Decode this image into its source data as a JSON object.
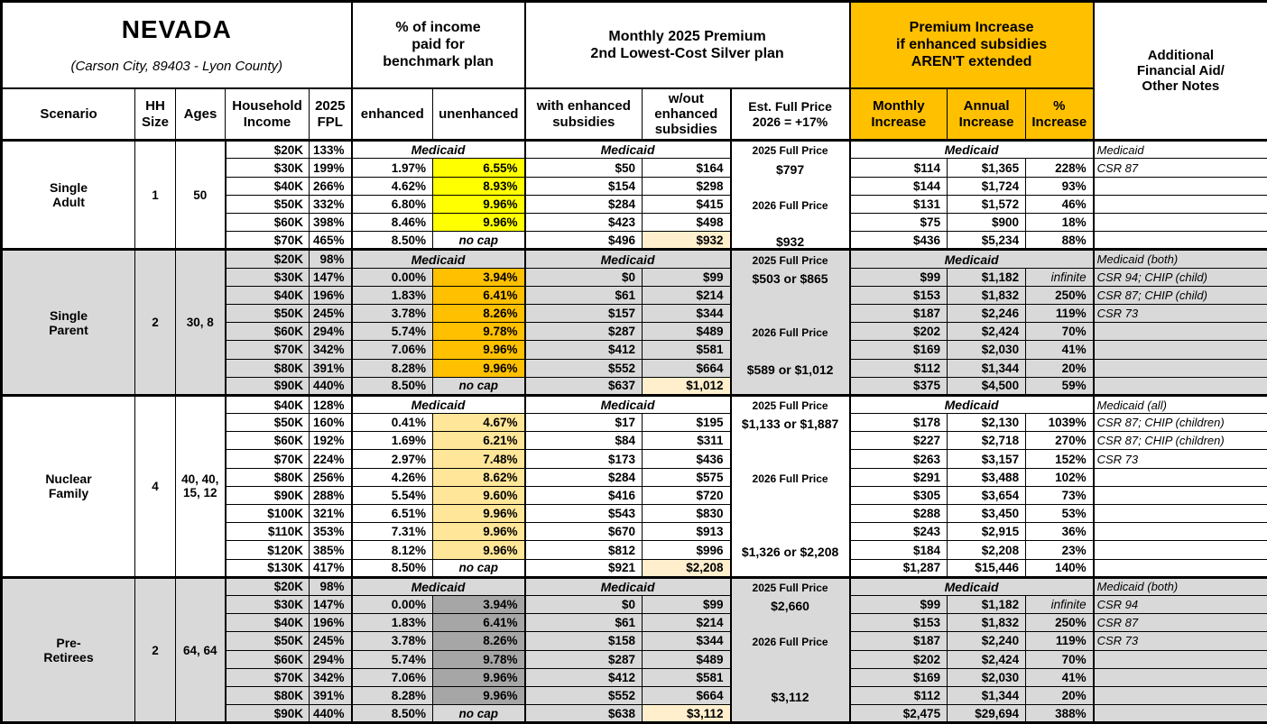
{
  "title": {
    "state": "NEVADA",
    "location": "(Carson City, 89403 - Lyon County)"
  },
  "column_groups": {
    "income_pct": "% of income\npaid for\nbenchmark plan",
    "premium": "Monthly 2025 Premium\n2nd Lowest-Cost Silver plan",
    "increase": "Premium Increase\nif enhanced subsidies\nAREN'T extended",
    "notes": "Additional\nFinancial Aid/\nOther Notes"
  },
  "column_headers": {
    "scenario": "Scenario",
    "hh_size": "HH\nSize",
    "ages": "Ages",
    "income": "Household\nIncome",
    "fpl": "2025\nFPL",
    "enhanced": "enhanced",
    "unenhanced": "unenhanced",
    "with_sub": "with enhanced\nsubsidies",
    "without_sub": "w/out\nenhanced\nsubsidies",
    "full_price": "Est. Full Price\n2026 = +17%",
    "monthly": "Monthly\nIncrease",
    "annual": "Annual\nIncrease",
    "pct": "%\nIncrease"
  },
  "labels": {
    "medicaid": "Medicaid",
    "no_cap": "no cap",
    "price_2025": "2025 Full Price",
    "price_2026": "2026 Full Price"
  },
  "colors": {
    "accent_orange": "#FFC000",
    "yellow": "#FFFF00",
    "peach": "#FFE699",
    "gray_cell": "#A6A6A6",
    "row_shade": "#D9D9D9",
    "highlight": "#FFEFCD"
  },
  "scenarios": [
    {
      "name": "Single\nAdult",
      "hh_size": "1",
      "ages": "50",
      "shaded": false,
      "unenhanced_color": "#FFFF00",
      "full_price_lines": [
        {
          "row": 0,
          "text": "2025 Full Price",
          "label": true
        },
        {
          "row": 1,
          "text": "$797"
        },
        {
          "row": 3,
          "text": "2026 Full Price",
          "label": true
        },
        {
          "row": 5,
          "text": "$932"
        }
      ],
      "rows": [
        {
          "income": "$20K",
          "fpl": "133%",
          "medicaid": true,
          "notes": "Medicaid"
        },
        {
          "income": "$30K",
          "fpl": "199%",
          "enhanced": "1.97%",
          "unenhanced": "6.55%",
          "with_sub": "$50",
          "without_sub": "$164",
          "monthly": "$114",
          "annual": "$1,365",
          "pct_increase": "228%",
          "notes": "CSR 87"
        },
        {
          "income": "$40K",
          "fpl": "266%",
          "enhanced": "4.62%",
          "unenhanced": "8.93%",
          "with_sub": "$154",
          "without_sub": "$298",
          "monthly": "$144",
          "annual": "$1,724",
          "pct_increase": "93%",
          "notes": ""
        },
        {
          "income": "$50K",
          "fpl": "332%",
          "enhanced": "6.80%",
          "unenhanced": "9.96%",
          "with_sub": "$284",
          "without_sub": "$415",
          "monthly": "$131",
          "annual": "$1,572",
          "pct_increase": "46%",
          "notes": ""
        },
        {
          "income": "$60K",
          "fpl": "398%",
          "enhanced": "8.46%",
          "unenhanced": "9.96%",
          "with_sub": "$423",
          "without_sub": "$498",
          "monthly": "$75",
          "annual": "$900",
          "pct_increase": "18%",
          "notes": ""
        },
        {
          "income": "$70K",
          "fpl": "465%",
          "enhanced": "8.50%",
          "unenhanced": "no cap",
          "no_cap": true,
          "with_sub": "$496",
          "without_sub": "$932",
          "wo_highlight": true,
          "monthly": "$436",
          "annual": "$5,234",
          "pct_increase": "88%",
          "notes": ""
        }
      ]
    },
    {
      "name": "Single\nParent",
      "hh_size": "2",
      "ages": "30, 8",
      "shaded": true,
      "unenhanced_color": "#FFC000",
      "full_price_lines": [
        {
          "row": 0,
          "text": "2025 Full Price",
          "label": true
        },
        {
          "row": 1,
          "text": "$503 or $865"
        },
        {
          "row": 4,
          "text": "2026 Full Price",
          "label": true
        },
        {
          "row": 6,
          "text": "$589 or $1,012"
        }
      ],
      "rows": [
        {
          "income": "$20K",
          "fpl": "98%",
          "medicaid": true,
          "notes": "Medicaid (both)"
        },
        {
          "income": "$30K",
          "fpl": "147%",
          "enhanced": "0.00%",
          "unenhanced": "3.94%",
          "with_sub": "$0",
          "without_sub": "$99",
          "monthly": "$99",
          "annual": "$1,182",
          "pct_increase": "infinite",
          "pct_italic": true,
          "notes": "CSR 94; CHIP (child)"
        },
        {
          "income": "$40K",
          "fpl": "196%",
          "enhanced": "1.83%",
          "unenhanced": "6.41%",
          "with_sub": "$61",
          "without_sub": "$214",
          "monthly": "$153",
          "annual": "$1,832",
          "pct_increase": "250%",
          "notes": "CSR 87; CHIP (child)"
        },
        {
          "income": "$50K",
          "fpl": "245%",
          "enhanced": "3.78%",
          "unenhanced": "8.26%",
          "with_sub": "$157",
          "without_sub": "$344",
          "monthly": "$187",
          "annual": "$2,246",
          "pct_increase": "119%",
          "notes": "CSR 73"
        },
        {
          "income": "$60K",
          "fpl": "294%",
          "enhanced": "5.74%",
          "unenhanced": "9.78%",
          "with_sub": "$287",
          "without_sub": "$489",
          "monthly": "$202",
          "annual": "$2,424",
          "pct_increase": "70%",
          "notes": ""
        },
        {
          "income": "$70K",
          "fpl": "342%",
          "enhanced": "7.06%",
          "unenhanced": "9.96%",
          "with_sub": "$412",
          "without_sub": "$581",
          "monthly": "$169",
          "annual": "$2,030",
          "pct_increase": "41%",
          "notes": ""
        },
        {
          "income": "$80K",
          "fpl": "391%",
          "enhanced": "8.28%",
          "unenhanced": "9.96%",
          "with_sub": "$552",
          "without_sub": "$664",
          "monthly": "$112",
          "annual": "$1,344",
          "pct_increase": "20%",
          "notes": ""
        },
        {
          "income": "$90K",
          "fpl": "440%",
          "enhanced": "8.50%",
          "unenhanced": "no cap",
          "no_cap": true,
          "with_sub": "$637",
          "without_sub": "$1,012",
          "wo_highlight": true,
          "monthly": "$375",
          "annual": "$4,500",
          "pct_increase": "59%",
          "notes": ""
        }
      ]
    },
    {
      "name": "Nuclear\nFamily",
      "hh_size": "4",
      "ages": "40, 40,\n15, 12",
      "shaded": false,
      "unenhanced_color": "#FFE699",
      "full_price_lines": [
        {
          "row": 0,
          "text": "2025 Full Price",
          "label": true
        },
        {
          "row": 1,
          "text": "$1,133 or $1,887"
        },
        {
          "row": 4,
          "text": "2026 Full Price",
          "label": true
        },
        {
          "row": 8,
          "text": "$1,326 or $2,208"
        }
      ],
      "rows": [
        {
          "income": "$40K",
          "fpl": "128%",
          "medicaid": true,
          "notes": "Medicaid (all)"
        },
        {
          "income": "$50K",
          "fpl": "160%",
          "enhanced": "0.41%",
          "unenhanced": "4.67%",
          "with_sub": "$17",
          "without_sub": "$195",
          "monthly": "$178",
          "annual": "$2,130",
          "pct_increase": "1039%",
          "notes": "CSR 87; CHIP (children)"
        },
        {
          "income": "$60K",
          "fpl": "192%",
          "enhanced": "1.69%",
          "unenhanced": "6.21%",
          "with_sub": "$84",
          "without_sub": "$311",
          "monthly": "$227",
          "annual": "$2,718",
          "pct_increase": "270%",
          "notes": "CSR 87; CHIP (children)"
        },
        {
          "income": "$70K",
          "fpl": "224%",
          "enhanced": "2.97%",
          "unenhanced": "7.48%",
          "with_sub": "$173",
          "without_sub": "$436",
          "monthly": "$263",
          "annual": "$3,157",
          "pct_increase": "152%",
          "notes": "CSR 73"
        },
        {
          "income": "$80K",
          "fpl": "256%",
          "enhanced": "4.26%",
          "unenhanced": "8.62%",
          "with_sub": "$284",
          "without_sub": "$575",
          "monthly": "$291",
          "annual": "$3,488",
          "pct_increase": "102%",
          "notes": ""
        },
        {
          "income": "$90K",
          "fpl": "288%",
          "enhanced": "5.54%",
          "unenhanced": "9.60%",
          "with_sub": "$416",
          "without_sub": "$720",
          "monthly": "$305",
          "annual": "$3,654",
          "pct_increase": "73%",
          "notes": ""
        },
        {
          "income": "$100K",
          "fpl": "321%",
          "enhanced": "6.51%",
          "unenhanced": "9.96%",
          "with_sub": "$543",
          "without_sub": "$830",
          "monthly": "$288",
          "annual": "$3,450",
          "pct_increase": "53%",
          "notes": ""
        },
        {
          "income": "$110K",
          "fpl": "353%",
          "enhanced": "7.31%",
          "unenhanced": "9.96%",
          "with_sub": "$670",
          "without_sub": "$913",
          "monthly": "$243",
          "annual": "$2,915",
          "pct_increase": "36%",
          "notes": ""
        },
        {
          "income": "$120K",
          "fpl": "385%",
          "enhanced": "8.12%",
          "unenhanced": "9.96%",
          "with_sub": "$812",
          "without_sub": "$996",
          "monthly": "$184",
          "annual": "$2,208",
          "pct_increase": "23%",
          "notes": ""
        },
        {
          "income": "$130K",
          "fpl": "417%",
          "enhanced": "8.50%",
          "unenhanced": "no cap",
          "no_cap": true,
          "with_sub": "$921",
          "without_sub": "$2,208",
          "wo_highlight": true,
          "monthly": "$1,287",
          "annual": "$15,446",
          "pct_increase": "140%",
          "notes": ""
        }
      ]
    },
    {
      "name": "Pre-\nRetirees",
      "hh_size": "2",
      "ages": "64, 64",
      "shaded": true,
      "unenhanced_color": "#A6A6A6",
      "full_price_lines": [
        {
          "row": 0,
          "text": "2025 Full Price",
          "label": true
        },
        {
          "row": 1,
          "text": "$2,660"
        },
        {
          "row": 3,
          "text": "2026 Full Price",
          "label": true
        },
        {
          "row": 6,
          "text": "$3,112"
        }
      ],
      "rows": [
        {
          "income": "$20K",
          "fpl": "98%",
          "medicaid": true,
          "notes": "Medicaid (both)"
        },
        {
          "income": "$30K",
          "fpl": "147%",
          "enhanced": "0.00%",
          "unenhanced": "3.94%",
          "with_sub": "$0",
          "without_sub": "$99",
          "monthly": "$99",
          "annual": "$1,182",
          "pct_increase": "infinite",
          "pct_italic": true,
          "notes": "CSR 94"
        },
        {
          "income": "$40K",
          "fpl": "196%",
          "enhanced": "1.83%",
          "unenhanced": "6.41%",
          "with_sub": "$61",
          "without_sub": "$214",
          "monthly": "$153",
          "annual": "$1,832",
          "pct_increase": "250%",
          "notes": "CSR 87"
        },
        {
          "income": "$50K",
          "fpl": "245%",
          "enhanced": "3.78%",
          "unenhanced": "8.26%",
          "with_sub": "$158",
          "without_sub": "$344",
          "monthly": "$187",
          "annual": "$2,240",
          "pct_increase": "119%",
          "notes": "CSR 73"
        },
        {
          "income": "$60K",
          "fpl": "294%",
          "enhanced": "5.74%",
          "unenhanced": "9.78%",
          "with_sub": "$287",
          "without_sub": "$489",
          "monthly": "$202",
          "annual": "$2,424",
          "pct_increase": "70%",
          "notes": ""
        },
        {
          "income": "$70K",
          "fpl": "342%",
          "enhanced": "7.06%",
          "unenhanced": "9.96%",
          "with_sub": "$412",
          "without_sub": "$581",
          "monthly": "$169",
          "annual": "$2,030",
          "pct_increase": "41%",
          "notes": ""
        },
        {
          "income": "$80K",
          "fpl": "391%",
          "enhanced": "8.28%",
          "unenhanced": "9.96%",
          "with_sub": "$552",
          "without_sub": "$664",
          "monthly": "$112",
          "annual": "$1,344",
          "pct_increase": "20%",
          "notes": ""
        },
        {
          "income": "$90K",
          "fpl": "440%",
          "enhanced": "8.50%",
          "unenhanced": "no cap",
          "no_cap": true,
          "with_sub": "$638",
          "without_sub": "$3,112",
          "wo_highlight": true,
          "monthly": "$2,475",
          "annual": "$29,694",
          "pct_increase": "388%",
          "notes": ""
        }
      ]
    }
  ]
}
